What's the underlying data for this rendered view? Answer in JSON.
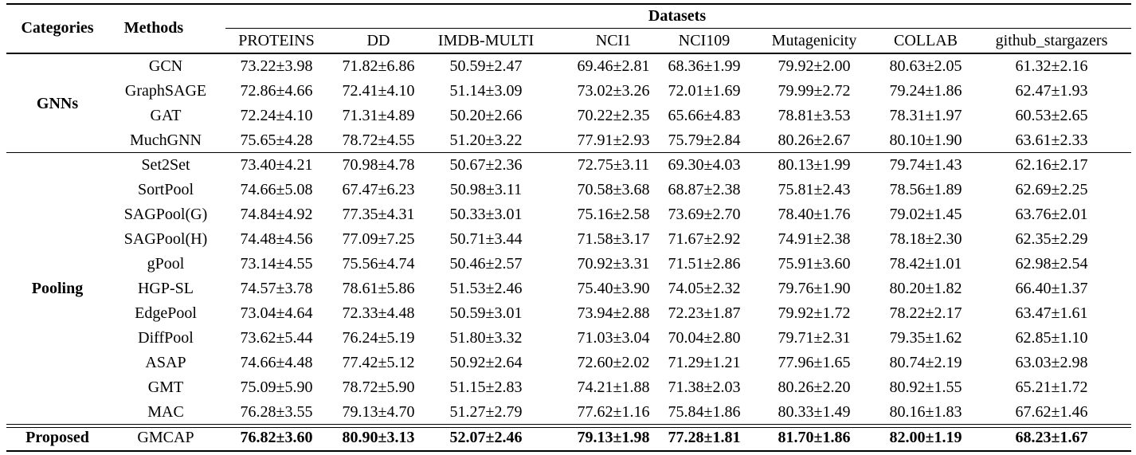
{
  "header": {
    "categories": "Categories",
    "methods": "Methods",
    "datasets": "Datasets",
    "columns": [
      "PROTEINS",
      "DD",
      "IMDB-MULTI",
      "NCI1",
      "NCI109",
      "Mutagenicity",
      "COLLAB",
      "github_stargazers"
    ]
  },
  "groups": [
    {
      "category": "GNNs",
      "rows": [
        {
          "method": "GCN",
          "values": [
            "73.22±3.98",
            "71.82±6.86",
            "50.59±2.47",
            "69.46±2.81",
            "68.36±1.99",
            "79.92±2.00",
            "80.63±2.05",
            "61.32±2.16"
          ]
        },
        {
          "method": "GraphSAGE",
          "values": [
            "72.86±4.66",
            "72.41±4.10",
            "51.14±3.09",
            "73.02±3.26",
            "72.01±1.69",
            "79.99±2.72",
            "79.24±1.86",
            "62.47±1.93"
          ]
        },
        {
          "method": "GAT",
          "values": [
            "72.24±4.10",
            "71.31±4.89",
            "50.20±2.66",
            "70.22±2.35",
            "65.66±4.83",
            "78.81±3.53",
            "78.31±1.97",
            "60.53±2.65"
          ]
        },
        {
          "method": "MuchGNN",
          "values": [
            "75.65±4.28",
            "78.72±4.55",
            "51.20±3.22",
            "77.91±2.93",
            "75.79±2.84",
            "80.26±2.67",
            "80.10±1.90",
            "63.61±2.33"
          ]
        }
      ]
    },
    {
      "category": "Pooling",
      "rows": [
        {
          "method": "Set2Set",
          "values": [
            "73.40±4.21",
            "70.98±4.78",
            "50.67±2.36",
            "72.75±3.11",
            "69.30±4.03",
            "80.13±1.99",
            "79.74±1.43",
            "62.16±2.17"
          ]
        },
        {
          "method": "SortPool",
          "values": [
            "74.66±5.08",
            "67.47±6.23",
            "50.98±3.11",
            "70.58±3.68",
            "68.87±2.38",
            "75.81±2.43",
            "78.56±1.89",
            "62.69±2.25"
          ]
        },
        {
          "method": "SAGPool(G)",
          "values": [
            "74.84±4.92",
            "77.35±4.31",
            "50.33±3.01",
            "75.16±2.58",
            "73.69±2.70",
            "78.40±1.76",
            "79.02±1.45",
            "63.76±2.01"
          ]
        },
        {
          "method": "SAGPool(H)",
          "values": [
            "74.48±4.56",
            "77.09±7.25",
            "50.71±3.44",
            "71.58±3.17",
            "71.67±2.92",
            "74.91±2.38",
            "78.18±2.30",
            "62.35±2.29"
          ]
        },
        {
          "method": "gPool",
          "values": [
            "73.14±4.55",
            "75.56±4.74",
            "50.46±2.57",
            "70.92±3.31",
            "71.51±2.86",
            "75.91±3.60",
            "78.42±1.01",
            "62.98±2.54"
          ]
        },
        {
          "method": "HGP-SL",
          "values": [
            "74.57±3.78",
            "78.61±5.86",
            "51.53±2.46",
            "75.40±3.90",
            "74.05±2.32",
            "79.76±1.90",
            "80.20±1.82",
            "66.40±1.37"
          ]
        },
        {
          "method": "EdgePool",
          "values": [
            "73.04±4.64",
            "72.33±4.48",
            "50.59±3.01",
            "73.94±2.88",
            "72.23±1.87",
            "79.92±1.72",
            "78.22±2.17",
            "63.47±1.61"
          ]
        },
        {
          "method": "DiffPool",
          "values": [
            "73.62±5.44",
            "76.24±5.19",
            "51.80±3.32",
            "71.03±3.04",
            "70.04±2.80",
            "79.71±2.31",
            "79.35±1.62",
            "62.85±1.10"
          ]
        },
        {
          "method": "ASAP",
          "values": [
            "74.66±4.48",
            "77.42±5.12",
            "50.92±2.64",
            "72.60±2.02",
            "71.29±1.21",
            "77.96±1.65",
            "80.74±2.19",
            "63.03±2.98"
          ]
        },
        {
          "method": "GMT",
          "values": [
            "75.09±5.90",
            "78.72±5.90",
            "51.15±2.83",
            "74.21±1.88",
            "71.38±2.03",
            "80.26±2.20",
            "80.92±1.55",
            "65.21±1.72"
          ]
        },
        {
          "method": "MAC",
          "values": [
            "76.28±3.55",
            "79.13±4.70",
            "51.27±2.79",
            "77.62±1.16",
            "75.84±1.86",
            "80.33±1.49",
            "80.16±1.83",
            "67.62±1.46"
          ]
        }
      ]
    },
    {
      "category": "Proposed",
      "rows": [
        {
          "method": "GMCAP",
          "values": [
            "76.82±3.60",
            "80.90±3.13",
            "52.07±2.46",
            "79.13±1.98",
            "77.28±1.81",
            "81.70±1.86",
            "82.00±1.19",
            "68.23±1.67"
          ]
        }
      ]
    }
  ]
}
